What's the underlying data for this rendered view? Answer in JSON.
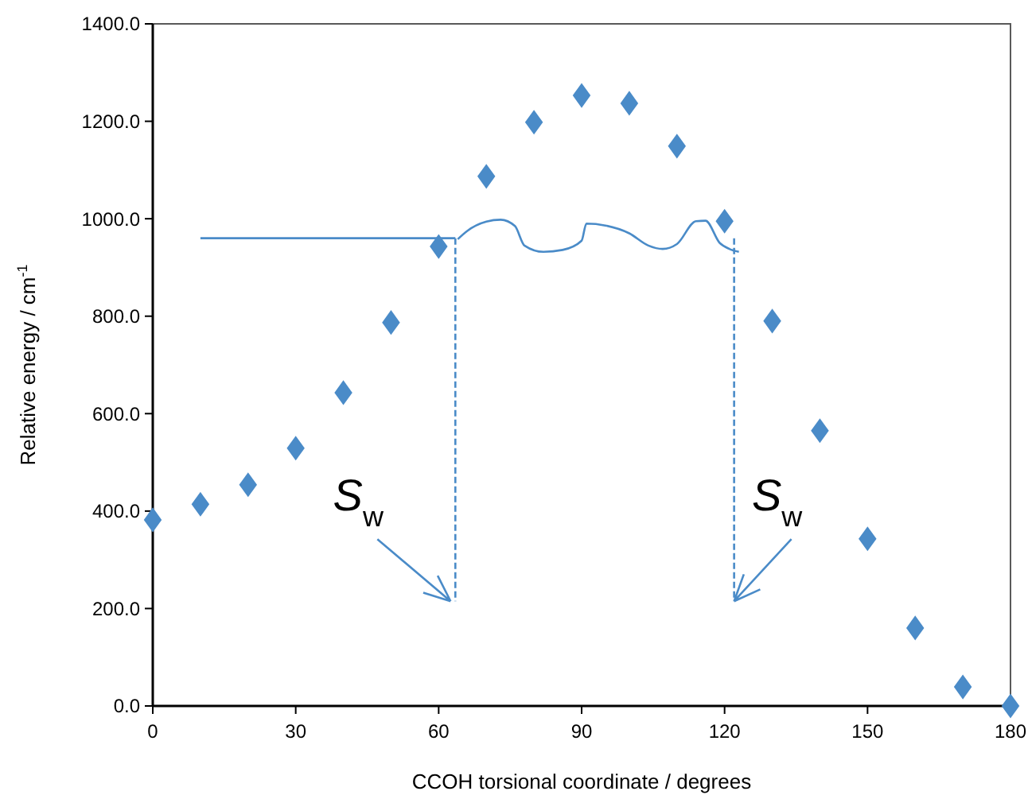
{
  "chart_data": {
    "type": "scatter",
    "xlabel": "CCOH torsional coordinate / degrees",
    "ylabel": "Relative energy / cm$^{-1}$",
    "x": [
      0,
      10,
      20,
      30,
      40,
      50,
      60,
      70,
      80,
      90,
      100,
      110,
      120,
      130,
      140,
      150,
      160,
      170,
      180
    ],
    "series": [
      {
        "color": "#4a8bc8",
        "values": [
          382,
          414,
          454,
          529,
          643,
          787,
          943,
          1087,
          1198,
          1253,
          1237,
          1149,
          995,
          790,
          565,
          343,
          160,
          39,
          0
        ]
      },
      {
        "type": "line",
        "marker": "none",
        "color": "#4a8bc8",
        "x": [
          10,
          63.5
        ],
        "values": [
          960,
          960
        ]
      },
      {
        "type": "line",
        "marker": "none",
        "color": "#4a8bc8",
        "line_style": "dashed",
        "x": [
          63.5,
          63.5
        ],
        "values": [
          960,
          215
        ]
      },
      {
        "type": "line",
        "marker": "none",
        "color": "#4a8bc8",
        "x": [
          64,
          66,
          70,
          73,
          76,
          78,
          82,
          86,
          90,
          91,
          95,
          100,
          104,
          107,
          110,
          114,
          116,
          119,
          121,
          123
        ],
        "values": [
          958,
          975,
          994,
          998,
          985,
          945,
          932,
          936,
          955,
          990,
          986,
          970,
          945,
          938,
          948,
          995,
          996,
          950,
          938,
          932
        ]
      },
      {
        "type": "line",
        "marker": "none",
        "color": "#4a8bc8",
        "line_style": "dashed",
        "x": [
          122,
          122
        ],
        "values": [
          960,
          215
        ]
      }
    ],
    "xlim": [
      0,
      180
    ],
    "xticks": [
      0,
      30,
      60,
      90,
      120,
      150,
      180
    ],
    "ylim": [
      0,
      1400
    ],
    "yticks": [
      {
        "value": 0,
        "label": "0.0"
      },
      {
        "value": 200,
        "label": "200.0"
      },
      {
        "value": 400,
        "label": "400.0"
      },
      {
        "value": 600,
        "label": "600.0"
      },
      {
        "value": 800,
        "label": "800.0"
      },
      {
        "value": 1000,
        "label": "1000.0"
      },
      {
        "value": 1200,
        "label": "1200.0"
      },
      {
        "value": 1400,
        "label": "1400.0"
      }
    ],
    "marker": "diamond",
    "grid": false,
    "annotations": [
      {
        "text": "S$_{w}$",
        "x": 62.5,
        "y": 215
      },
      {
        "text": "S$_{w}$",
        "x": 122,
        "y": 215
      }
    ]
  }
}
